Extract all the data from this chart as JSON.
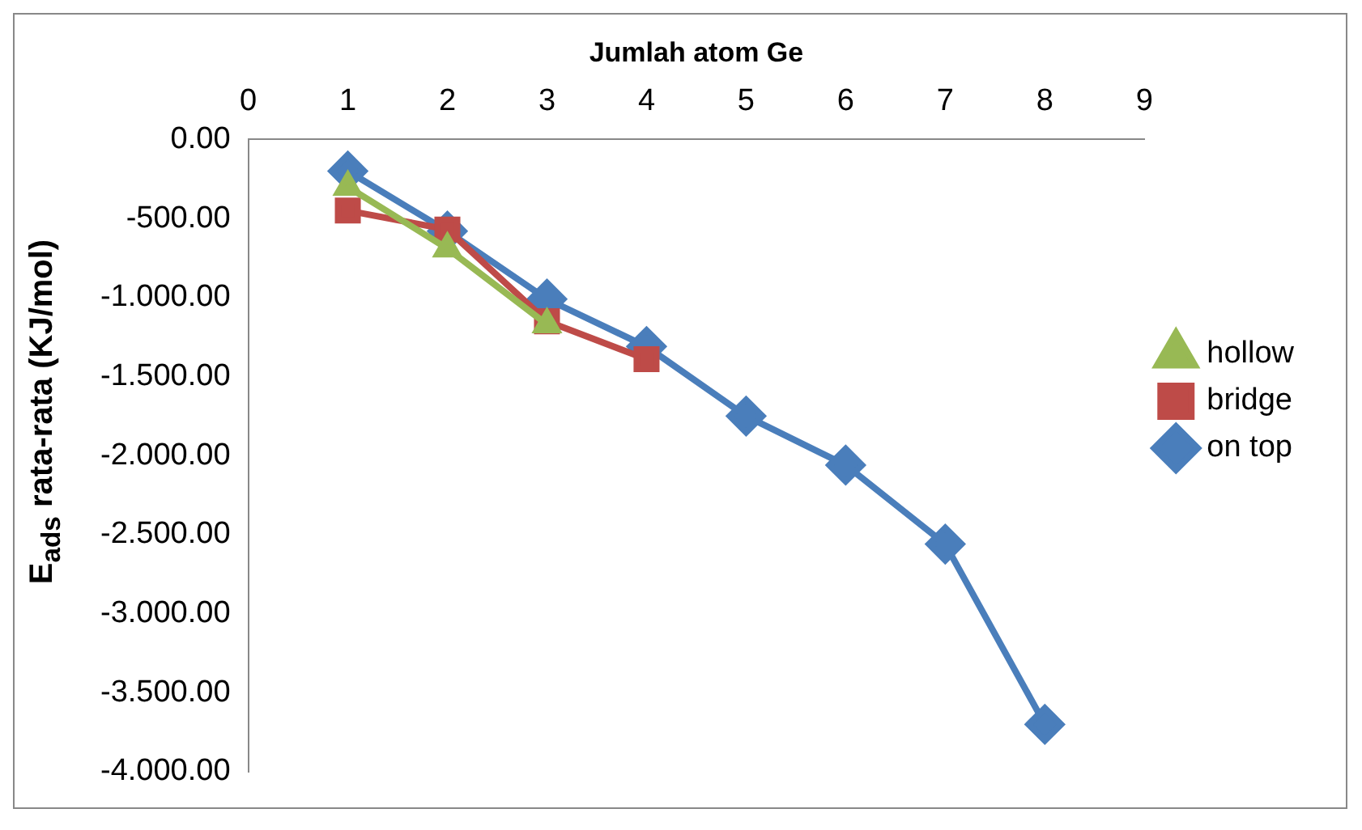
{
  "chart_data": {
    "type": "line",
    "xlabel": "Jumlah atom Ge",
    "ylabel": "E$_{ads}$ rata-rata (KJ/mol)",
    "x": [
      1,
      2,
      3,
      4,
      5,
      6,
      7,
      8
    ],
    "xlim": [
      0,
      9
    ],
    "xticks": [
      0,
      1,
      2,
      3,
      4,
      5,
      6,
      7,
      8,
      9
    ],
    "ylim": [
      -4000,
      0
    ],
    "yticks": [
      {
        "value": 0,
        "label": "0.00"
      },
      {
        "value": -500,
        "label": "-500.00"
      },
      {
        "value": -1000,
        "label": "-1.000.00"
      },
      {
        "value": -1500,
        "label": "-1.500.00"
      },
      {
        "value": -2000,
        "label": "-2.000.00"
      },
      {
        "value": -2500,
        "label": "-2.500.00"
      },
      {
        "value": -3000,
        "label": "-3.000.00"
      },
      {
        "value": -3500,
        "label": "-3.500.00"
      },
      {
        "value": -4000,
        "label": "-4.000.00"
      }
    ],
    "grid": false,
    "legend": "right",
    "series": [
      {
        "name": "on top",
        "color": "#4a7ebb",
        "marker": "diamond",
        "values": [
          -200,
          -580,
          -1010,
          -1310,
          -1750,
          -2060,
          -2560,
          -3700
        ]
      },
      {
        "name": "bridge",
        "color": "#be4b48",
        "marker": "square",
        "x": [
          1,
          2,
          3,
          4
        ],
        "values": [
          -450,
          -570,
          -1150,
          -1390
        ]
      },
      {
        "name": "hollow",
        "color": "#98b954",
        "marker": "triangle",
        "x": [
          1,
          2,
          3
        ],
        "values": [
          -300,
          -690,
          -1170
        ]
      }
    ]
  }
}
